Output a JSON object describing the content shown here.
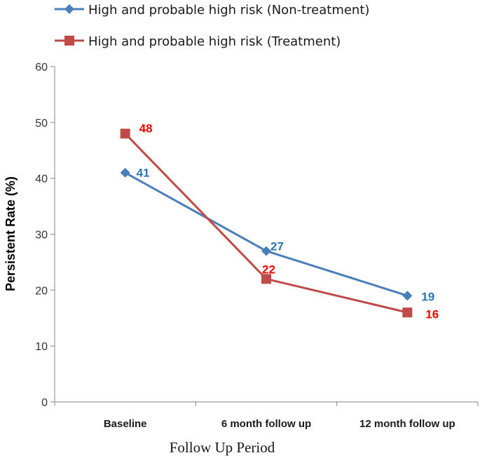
{
  "chart_data": {
    "type": "line",
    "categories": [
      "Baseline",
      "6 month follow up",
      "12 month follow up"
    ],
    "series": [
      {
        "name": "High and probable high risk (Non-treatment)",
        "values": [
          41,
          27,
          19
        ],
        "color": "#4a7ebb",
        "marker": "diamond",
        "label_color": "#2e75b6"
      },
      {
        "name": "High and probable high risk (Treatment)",
        "values": [
          48,
          22,
          16
        ],
        "color": "#be4b48",
        "marker": "square",
        "label_color": "#ff0000"
      }
    ],
    "title": "",
    "xlabel": "Follow Up Period",
    "ylabel": "Persistent Rate (%)",
    "ylim": [
      0,
      60
    ],
    "yticks": [
      "0",
      "10",
      "20",
      "30",
      "40",
      "50",
      "60"
    ],
    "grid": false,
    "legend_position": "top"
  }
}
